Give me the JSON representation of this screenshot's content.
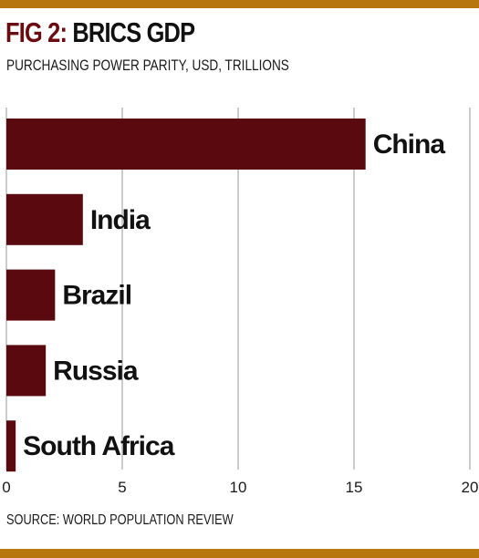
{
  "header": {
    "fig_label": "FIG 2:",
    "title": "BRICS GDP",
    "subtitle": "PURCHASING POWER PARITY, USD, TRILLIONS"
  },
  "footer": {
    "source": "SOURCE: WORLD POPULATION REVIEW"
  },
  "colors": {
    "accent_rule": "#b8760f",
    "bar": "#5a0a0e",
    "fig_label": "#6b0a10",
    "grid": "#9a9a9a"
  },
  "chart_data": {
    "type": "bar",
    "orientation": "horizontal",
    "categories": [
      "China",
      "India",
      "Brazil",
      "Russia",
      "South Africa"
    ],
    "values": [
      15.5,
      3.3,
      2.1,
      1.7,
      0.4
    ],
    "xlim": [
      0,
      20
    ],
    "xticks": [
      0,
      5,
      10,
      15,
      20
    ],
    "xtick_labels": [
      "0",
      "5",
      "10",
      "15",
      "20"
    ],
    "grid": "vertical"
  }
}
